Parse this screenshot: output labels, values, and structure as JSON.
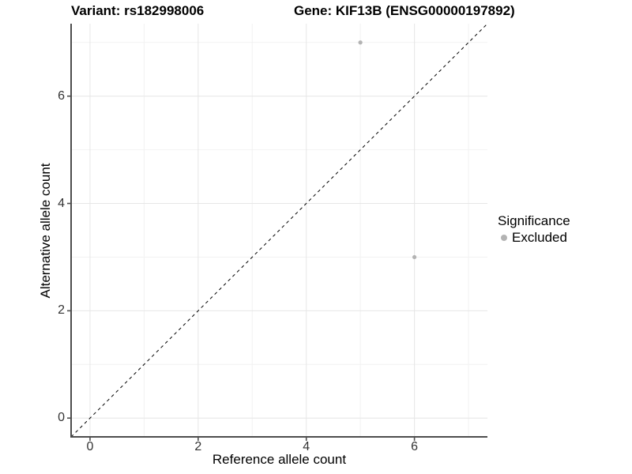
{
  "chart_data": {
    "type": "scatter",
    "title_left": "Variant: rs182998006",
    "title_right": "Gene: KIF13B (ENSG00000197892)",
    "xlabel": "Reference allele count",
    "ylabel": "Alternative allele count",
    "xlim": [
      -0.35,
      7.35
    ],
    "ylim": [
      -0.35,
      7.35
    ],
    "x_ticks": [
      0,
      2,
      4,
      6
    ],
    "y_ticks": [
      0,
      2,
      4,
      6
    ],
    "x_minor_gridlines": [
      1,
      3,
      5,
      7
    ],
    "y_minor_gridlines": [
      1,
      3,
      5,
      7
    ],
    "grid": true,
    "series": [
      {
        "name": "Excluded",
        "color": "#b3b3b3",
        "points": [
          [
            5,
            7
          ],
          [
            6,
            3
          ]
        ]
      }
    ],
    "reference_line": {
      "slope": 1,
      "intercept": 0,
      "style": "dashed",
      "color": "#000000"
    },
    "legend": {
      "title": "Significance",
      "position": "right-center",
      "entries": [
        {
          "label": "Excluded",
          "color": "#b3b3b3"
        }
      ]
    }
  },
  "colors": {
    "background": "#ffffff",
    "grid_major": "#e6e6e6",
    "grid_minor": "#f2f2f2",
    "axis_line": "#4d4d4d",
    "tick_text": "#333333"
  }
}
